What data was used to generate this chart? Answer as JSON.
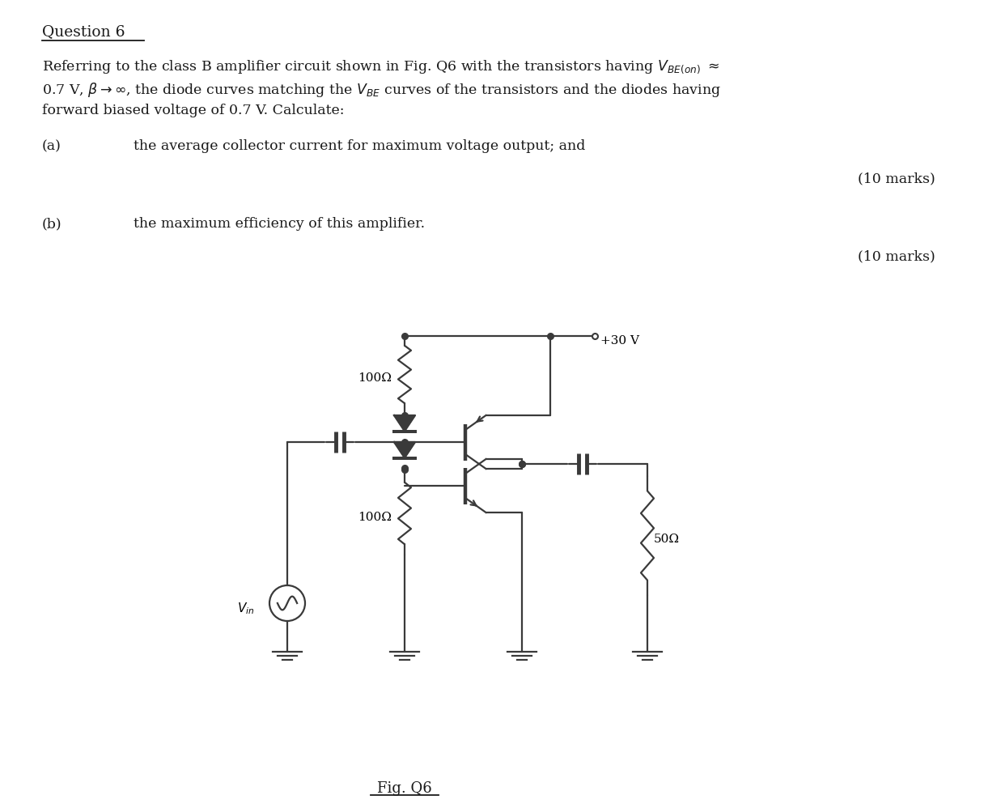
{
  "bg_color": "#ffffff",
  "title": "Question 6",
  "para1": "Referring to the class B amplifier circuit shown in Fig. Q6 with the transistors having $V_{BE(on)}$ $\\approx$",
  "para2": "0.7 V, $\\beta$$\\rightarrow$$\\infty$, the diode curves matching the $V_{BE}$ curves of the transistors and the diodes having",
  "para3": "forward biased voltage of 0.7 V. Calculate:",
  "part_a_label": "(a)",
  "part_a_text": "the average collector current for maximum voltage output; and",
  "marks_a": "(10 marks)",
  "part_b_label": "(b)",
  "part_b_text": "the maximum efficiency of this amplifier.",
  "marks_b": "(10 marks)",
  "fig_label": "Fig. Q6",
  "r1_label": "100Ω",
  "r2_label": "100Ω",
  "r3_label": "50Ω",
  "vcc_label": "+30 V",
  "vin_label": "$V_{in}$",
  "text_color": "#1a1a1a",
  "circuit_color": "#3a3a3a"
}
